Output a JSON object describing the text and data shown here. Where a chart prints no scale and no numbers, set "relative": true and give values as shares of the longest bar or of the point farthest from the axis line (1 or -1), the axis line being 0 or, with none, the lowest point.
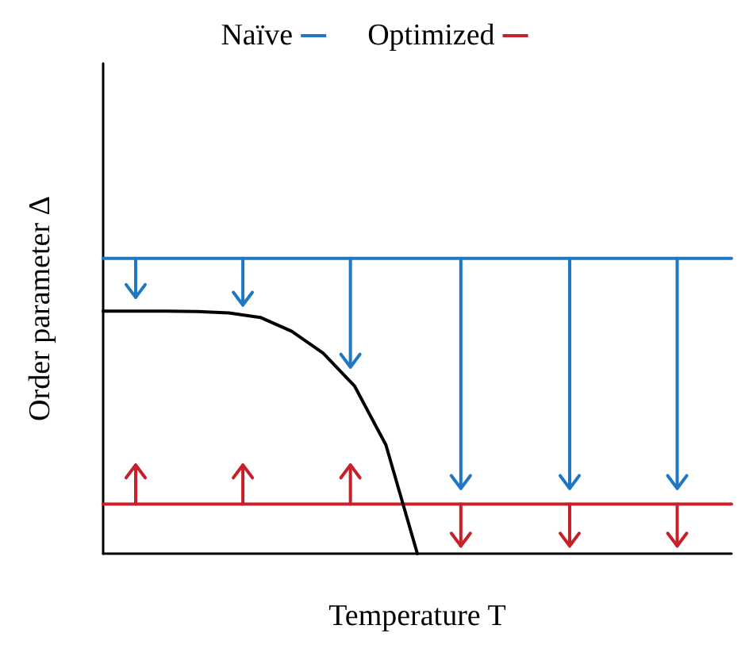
{
  "chart_data": {
    "type": "line",
    "relative": true,
    "xlabel": "Temperature T",
    "ylabel": "Order parameter Δ",
    "categories": [
      null,
      null,
      null,
      null,
      null,
      null,
      null,
      null,
      null,
      null,
      null,
      null,
      null,
      null,
      null,
      null,
      null,
      null,
      null,
      null,
      null
    ],
    "series": [
      {
        "name": "Naïve",
        "color": "#1f77c4",
        "values": [
          1,
          1,
          1,
          1,
          1,
          1,
          1,
          1,
          1,
          1,
          1,
          1,
          1,
          1,
          1,
          1,
          1,
          1,
          1,
          1,
          1
        ]
      },
      {
        "name": "Optimized",
        "color": "#c8202a",
        "values": [
          0.168,
          0.168,
          0.168,
          0.168,
          0.168,
          0.168,
          0.168,
          0.168,
          0.168,
          0.168,
          0.168,
          0.168,
          0.168,
          0.168,
          0.168,
          0.168,
          0.168,
          0.168,
          0.168,
          0.168,
          0.168
        ]
      },
      {
        "color": "#000000",
        "values": [
          0.821,
          0.821,
          0.821,
          0.82,
          0.815,
          0.8,
          0.753,
          0.679,
          0.568,
          0.368,
          0,
          null,
          null,
          null,
          null,
          null,
          null,
          null,
          null,
          null,
          null
        ]
      }
    ],
    "legend": "top",
    "grid": false,
    "marker": "none",
    "line_style": "solid"
  }
}
